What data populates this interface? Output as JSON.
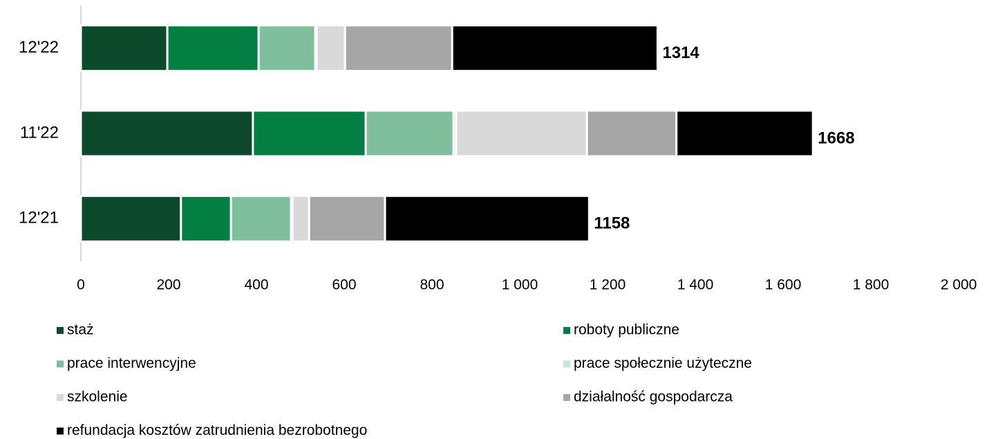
{
  "chart_data": {
    "type": "stacked-barh",
    "categories": [
      "12'22",
      "11'22",
      "12'21"
    ],
    "series": [
      {
        "name": "staż",
        "color": "#0d4a2b",
        "values": [
          197,
          392,
          228
        ]
      },
      {
        "name": "roboty publiczne",
        "color": "#037f44",
        "values": [
          208,
          257,
          114
        ]
      },
      {
        "name": "prace interwencyjne",
        "color": "#7fbf9e",
        "values": [
          129,
          200,
          137
        ]
      },
      {
        "name": "prace społecznie użyteczne",
        "color": "#c8e6d6",
        "values": [
          3,
          6,
          3
        ]
      },
      {
        "name": "szkolenie",
        "color": "#d9d9d9",
        "values": [
          65,
          298,
          38
        ]
      },
      {
        "name": "działalność gospodarcza",
        "color": "#a6a6a6",
        "values": [
          244,
          204,
          173
        ]
      },
      {
        "name": "refundacja kosztów zatrudnienia bezrobotnego",
        "color": "#000000",
        "values": [
          468,
          311,
          465
        ]
      }
    ],
    "totals": [
      1314,
      1668,
      1158
    ],
    "xlim": [
      0,
      2000
    ],
    "xticks": [
      0,
      200,
      400,
      600,
      800,
      {
        "value": 1000,
        "label": "1 000"
      },
      {
        "value": 1200,
        "label": "1 200"
      },
      {
        "value": 1400,
        "label": "1 400"
      },
      {
        "value": 1600,
        "label": "1 600"
      },
      {
        "value": 1800,
        "label": "1 800"
      },
      {
        "value": 2000,
        "label": "2 000"
      }
    ],
    "legend": "bottom"
  }
}
